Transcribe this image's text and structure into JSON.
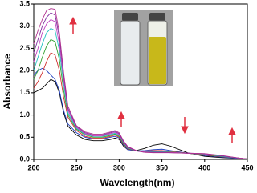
{
  "chart_data": {
    "type": "line",
    "xlabel": "Wavelength(nm)",
    "ylabel": "Absorbance",
    "x": [
      200,
      205,
      210,
      215,
      220,
      225,
      230,
      235,
      240,
      250,
      260,
      270,
      280,
      290,
      295,
      300,
      305,
      310,
      320,
      330,
      340,
      350,
      360,
      380,
      400,
      420,
      440,
      450
    ],
    "xlim": [
      200,
      450
    ],
    "xticks": [
      200,
      250,
      300,
      350,
      400,
      450
    ],
    "ylim": [
      0,
      3.5
    ],
    "yticks": [
      {
        "value": 0,
        "label": "0.0"
      },
      0.5,
      {
        "value": 1,
        "label": "1.0"
      },
      1.5,
      {
        "value": 2,
        "label": "2.0"
      },
      2.5,
      {
        "value": 3,
        "label": "3.0"
      },
      3.5
    ],
    "series": [
      {
        "color": "#000000",
        "values": [
          1.5,
          1.55,
          1.6,
          1.7,
          1.8,
          1.75,
          1.5,
          1.05,
          0.75,
          0.55,
          0.45,
          0.42,
          0.42,
          0.45,
          0.48,
          0.45,
          0.3,
          0.22,
          0.2,
          0.25,
          0.32,
          0.35,
          0.3,
          0.15,
          0.07,
          0.04,
          0.02,
          0.01
        ]
      },
      {
        "color": "#1f3fbf",
        "values": [
          1.9,
          2.0,
          2.05,
          2.0,
          1.9,
          1.8,
          1.55,
          1.1,
          0.8,
          0.6,
          0.5,
          0.46,
          0.46,
          0.5,
          0.52,
          0.48,
          0.32,
          0.22,
          0.19,
          0.2,
          0.22,
          0.23,
          0.2,
          0.14,
          0.09,
          0.05,
          0.02,
          0.01
        ]
      },
      {
        "color": "#d03030",
        "values": [
          1.6,
          1.75,
          1.95,
          2.2,
          2.4,
          2.35,
          2.0,
          1.4,
          0.95,
          0.65,
          0.52,
          0.48,
          0.48,
          0.52,
          0.55,
          0.5,
          0.34,
          0.24,
          0.19,
          0.19,
          0.2,
          0.2,
          0.18,
          0.14,
          0.1,
          0.06,
          0.03,
          0.01
        ]
      },
      {
        "color": "#30a030",
        "values": [
          1.8,
          2.0,
          2.3,
          2.55,
          2.7,
          2.65,
          2.25,
          1.55,
          1.0,
          0.68,
          0.55,
          0.5,
          0.5,
          0.54,
          0.57,
          0.52,
          0.36,
          0.25,
          0.19,
          0.18,
          0.18,
          0.18,
          0.17,
          0.14,
          0.11,
          0.07,
          0.03,
          0.01
        ]
      },
      {
        "color": "#20c0c0",
        "values": [
          2.0,
          2.3,
          2.6,
          2.85,
          2.95,
          2.9,
          2.45,
          1.7,
          1.05,
          0.7,
          0.57,
          0.52,
          0.52,
          0.56,
          0.59,
          0.54,
          0.38,
          0.26,
          0.19,
          0.17,
          0.17,
          0.17,
          0.16,
          0.14,
          0.12,
          0.07,
          0.03,
          0.01
        ]
      },
      {
        "color": "#c040c0",
        "values": [
          2.2,
          2.5,
          2.85,
          3.05,
          3.15,
          3.1,
          2.6,
          1.8,
          1.1,
          0.72,
          0.58,
          0.53,
          0.53,
          0.58,
          0.61,
          0.56,
          0.39,
          0.27,
          0.19,
          0.17,
          0.16,
          0.16,
          0.16,
          0.14,
          0.12,
          0.08,
          0.03,
          0.01
        ]
      },
      {
        "color": "#8030a0",
        "values": [
          2.4,
          2.7,
          3.0,
          3.2,
          3.3,
          3.25,
          2.75,
          1.9,
          1.15,
          0.74,
          0.6,
          0.55,
          0.55,
          0.6,
          0.63,
          0.58,
          0.4,
          0.28,
          0.19,
          0.16,
          0.16,
          0.16,
          0.15,
          0.14,
          0.13,
          0.08,
          0.03,
          0.01
        ]
      },
      {
        "color": "#b0308f",
        "values": [
          2.6,
          2.9,
          3.15,
          3.35,
          3.4,
          3.38,
          2.85,
          1.95,
          1.2,
          0.76,
          0.62,
          0.57,
          0.57,
          0.62,
          0.65,
          0.6,
          0.42,
          0.29,
          0.2,
          0.16,
          0.15,
          0.15,
          0.15,
          0.14,
          0.13,
          0.09,
          0.03,
          0.01
        ]
      }
    ]
  }
}
